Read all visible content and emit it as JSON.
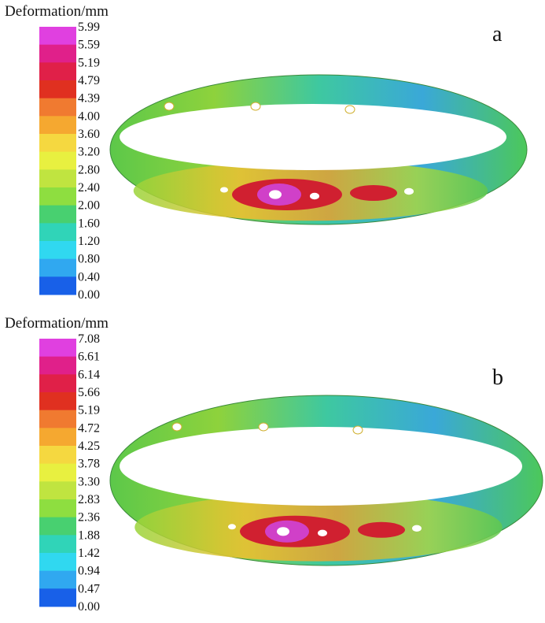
{
  "panels": [
    {
      "label": "a",
      "legend_title": "Deformation/mm",
      "legend_labels": [
        "5.99",
        "5.59",
        "5.19",
        "4.79",
        "4.39",
        "4.00",
        "3.60",
        "3.20",
        "2.80",
        "2.40",
        "2.00",
        "1.60",
        "1.20",
        "0.80",
        "0.40",
        "0.00"
      ]
    },
    {
      "label": "b",
      "legend_title": "Deformation/mm",
      "legend_labels": [
        "7.08",
        "6.61",
        "6.14",
        "5.66",
        "5.19",
        "4.72",
        "4.25",
        "3.78",
        "3.30",
        "2.83",
        "2.36",
        "1.88",
        "1.42",
        "0.94",
        "0.47",
        "0.00"
      ]
    }
  ]
}
